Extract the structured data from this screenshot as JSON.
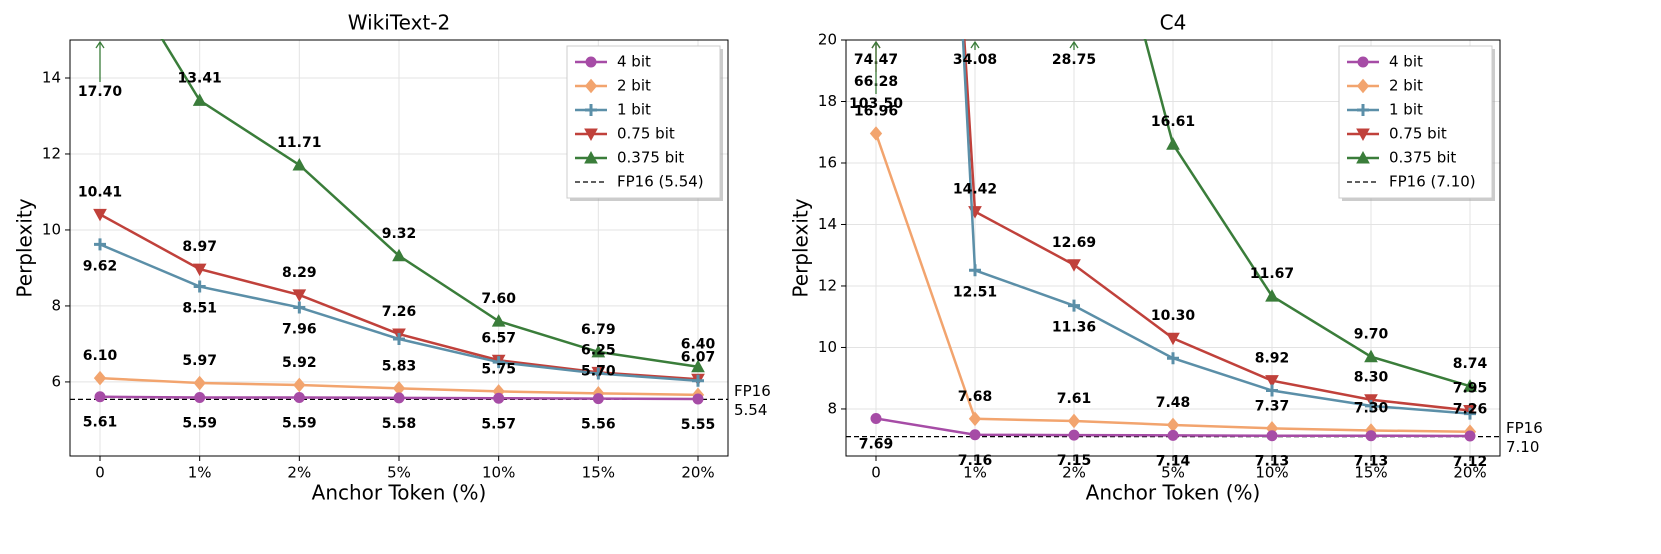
{
  "chart_data": [
    {
      "type": "line",
      "title": "WikiText-2",
      "x_label": "Anchor Token (%)",
      "y_label": "Perplexity",
      "categories": [
        "0",
        "1%",
        "2%",
        "5%",
        "10%",
        "15%",
        "20%"
      ],
      "ylim": [
        4.05,
        15
      ],
      "yticks": [
        6,
        8,
        10,
        12,
        14
      ],
      "grid": true,
      "legend": "upper right",
      "series": [
        {
          "name": "4 bit",
          "color": "#a64ca6",
          "marker": "circle",
          "values": [
            5.61,
            5.59,
            5.59,
            5.58,
            5.57,
            5.56,
            5.55
          ],
          "value_labels": [
            "5.61",
            "5.59",
            "5.59",
            "5.58",
            "5.57",
            "5.56",
            "5.55"
          ]
        },
        {
          "name": "2 bit",
          "color": "#f2a46e",
          "marker": "diamond",
          "values": [
            6.1,
            5.97,
            5.92,
            5.83,
            5.75,
            5.7,
            5.66
          ],
          "value_labels": [
            "6.10",
            "5.97",
            "5.92",
            "5.83",
            "5.75",
            "5.70",
            null
          ]
        },
        {
          "name": "1 bit",
          "color": "#5b8fa8",
          "marker": "plus",
          "values": [
            9.62,
            8.51,
            7.96,
            7.13,
            6.52,
            6.22,
            6.03
          ],
          "value_labels": [
            "9.62",
            "8.51",
            "7.96",
            null,
            null,
            null,
            null
          ]
        },
        {
          "name": "0.75 bit",
          "color": "#c0413b",
          "marker": "triangle-down",
          "values": [
            10.41,
            8.97,
            8.29,
            7.26,
            6.57,
            6.25,
            6.07
          ],
          "value_labels": [
            "10.41",
            "8.97",
            "8.29",
            "7.26",
            "6.57",
            "6.25",
            "6.07"
          ]
        },
        {
          "name": "0.375 bit",
          "color": "#3a7d3a",
          "marker": "triangle-up",
          "values": [
            17.7,
            13.41,
            11.71,
            9.32,
            7.6,
            6.79,
            6.4
          ],
          "value_labels": [
            "17.70",
            "13.41",
            "11.71",
            "9.32",
            "7.60",
            "6.79",
            "6.40"
          ]
        }
      ],
      "reference": {
        "name": "FP16 (5.54)",
        "label": "FP16",
        "value": 5.54,
        "value_label": "5.54"
      }
    },
    {
      "type": "line",
      "title": "C4",
      "x_label": "Anchor Token (%)",
      "y_label": "Perplexity",
      "categories": [
        "0",
        "1%",
        "2%",
        "5%",
        "10%",
        "15%",
        "20%"
      ],
      "ylim": [
        6.47,
        20
      ],
      "yticks": [
        8,
        10,
        12,
        14,
        16,
        18,
        20
      ],
      "grid": true,
      "legend": "upper right",
      "series": [
        {
          "name": "4 bit",
          "color": "#a64ca6",
          "marker": "circle",
          "values": [
            7.69,
            7.16,
            7.15,
            7.14,
            7.13,
            7.13,
            7.12
          ],
          "value_labels": [
            "7.69",
            "7.16",
            "7.15",
            "7.14",
            "7.13",
            "7.13",
            "7.12"
          ]
        },
        {
          "name": "2 bit",
          "color": "#f2a46e",
          "marker": "diamond",
          "values": [
            16.96,
            7.68,
            7.61,
            7.48,
            7.37,
            7.3,
            7.26
          ],
          "value_labels": [
            "16.96",
            "7.68",
            "7.61",
            "7.48",
            "7.37",
            "7.30",
            "7.26"
          ]
        },
        {
          "name": "1 bit",
          "color": "#5b8fa8",
          "marker": "plus",
          "values": [
            74.47,
            12.51,
            11.36,
            9.65,
            8.6,
            8.1,
            7.85
          ],
          "value_labels": [
            "74.47",
            "12.51",
            "11.36",
            null,
            null,
            null,
            null
          ]
        },
        {
          "name": "0.75 bit",
          "color": "#c0413b",
          "marker": "triangle-down",
          "values": [
            66.28,
            14.42,
            12.69,
            10.3,
            8.92,
            8.3,
            7.95
          ],
          "value_labels": [
            "66.28",
            "14.42",
            "12.69",
            "10.30",
            "8.92",
            "8.30",
            "7.95"
          ]
        },
        {
          "name": "0.375 bit",
          "color": "#3a7d3a",
          "marker": "triangle-up",
          "values": [
            103.5,
            34.08,
            28.75,
            16.61,
            11.67,
            9.7,
            8.74
          ],
          "value_labels": [
            "103.50",
            "34.08",
            "28.75",
            "16.61",
            "11.67",
            "9.70",
            "8.74"
          ]
        }
      ],
      "reference": {
        "name": "FP16 (7.10)",
        "label": "FP16",
        "value": 7.1,
        "value_label": "7.10"
      }
    }
  ]
}
